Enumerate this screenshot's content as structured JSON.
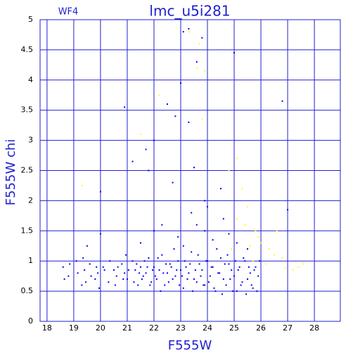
{
  "chart_data": {
    "type": "scatter",
    "title": "lmc_u5i281",
    "annotation": "WF4",
    "x_label": "F555W",
    "y_label": "F555W chi",
    "xlim": [
      17.74,
      28.97
    ],
    "ylim": [
      0,
      5
    ],
    "xticks": [
      18,
      19,
      20,
      21,
      22,
      23,
      24,
      25,
      26,
      27,
      28
    ],
    "yticks": [
      0,
      0.5,
      1,
      1.5,
      2,
      2.5,
      3,
      3.5,
      4,
      4.5,
      5
    ],
    "grid": true,
    "series": [
      {
        "color": "#0000ff",
        "x": [
          18.6,
          18.8,
          19.1,
          19.3,
          19.4,
          19.6,
          19.8,
          19.9,
          20.1,
          20.3,
          20.5,
          20.6,
          20.8,
          20.9,
          21.0,
          21.2,
          21.3,
          21.4,
          21.5,
          21.6,
          21.7,
          21.8,
          21.9,
          22.0,
          22.1,
          22.2,
          22.3,
          22.4,
          22.5,
          22.6,
          22.7,
          22.8,
          22.9,
          23.0,
          23.1,
          23.2,
          23.3,
          23.4,
          23.5,
          23.6,
          23.7,
          23.8,
          23.9,
          24.0,
          24.1,
          24.2,
          24.3,
          24.4,
          24.5,
          24.6,
          24.7,
          24.8,
          24.9,
          25.0,
          25.1,
          25.2,
          25.3,
          25.4,
          25.5,
          25.6,
          25.7,
          25.8,
          25.9,
          18.65,
          18.85,
          19.15,
          19.35,
          19.45,
          19.65,
          19.85,
          19.95,
          20.15,
          20.35,
          20.55,
          20.65,
          20.85,
          20.95,
          21.05,
          21.25,
          21.35,
          21.45,
          21.55,
          21.65,
          21.75,
          21.85,
          21.95,
          22.05,
          22.15,
          22.25,
          22.35,
          22.45,
          22.55,
          22.65,
          22.75,
          22.85,
          22.95,
          23.05,
          23.15,
          23.25,
          23.35,
          23.45,
          23.55,
          23.65,
          23.75,
          23.85,
          23.95,
          24.05,
          24.15,
          24.25,
          24.35,
          24.45,
          24.55,
          24.65,
          24.75,
          24.85,
          24.95,
          25.05,
          25.15,
          25.25,
          25.35,
          25.45,
          25.55,
          25.65,
          25.75,
          25.85,
          25.95,
          23.3,
          23.1,
          23.8,
          25.0,
          23.6,
          23.0,
          26.8,
          22.5,
          20.9,
          22.8,
          23.3,
          22.0,
          21.7,
          21.2,
          21.8,
          23.5,
          20.0,
          27.0,
          23.9,
          24.5,
          22.7,
          21.5,
          22.3,
          22.9,
          23.4,
          23.9,
          24.2,
          24.6,
          25.1,
          22.0,
          23.1,
          24.0,
          24.8,
          20.0,
          19.5,
          25.5,
          23.6
        ],
        "values": [
          0.9,
          0.75,
          1.0,
          0.6,
          0.85,
          0.95,
          0.7,
          0.8,
          0.9,
          0.65,
          0.85,
          0.75,
          0.95,
          0.8,
          0.7,
          1.0,
          0.85,
          0.6,
          0.9,
          0.75,
          0.8,
          1.05,
          0.65,
          0.9,
          0.7,
          0.85,
          1.1,
          0.6,
          0.8,
          0.95,
          0.7,
          0.75,
          1.0,
          0.85,
          0.55,
          0.9,
          0.8,
          1.15,
          0.7,
          0.65,
          0.95,
          0.85,
          0.6,
          1.0,
          0.75,
          0.9,
          0.5,
          0.8,
          1.05,
          0.7,
          0.6,
          0.95,
          0.85,
          0.75,
          0.5,
          0.9,
          0.65,
          1.0,
          0.7,
          0.8,
          0.55,
          0.9,
          0.75,
          0.7,
          0.95,
          0.8,
          1.05,
          0.65,
          0.75,
          0.9,
          0.55,
          0.85,
          1.0,
          0.6,
          0.9,
          0.7,
          1.1,
          0.85,
          0.65,
          0.95,
          0.8,
          0.7,
          1.0,
          0.9,
          0.6,
          0.85,
          0.75,
          1.05,
          0.5,
          0.8,
          0.95,
          0.65,
          0.9,
          1.2,
          0.85,
          0.6,
          0.75,
          1.0,
          0.7,
          0.95,
          0.5,
          0.85,
          1.1,
          0.75,
          0.6,
          1.0,
          0.65,
          0.9,
          0.55,
          1.2,
          0.8,
          0.45,
          0.95,
          1.1,
          0.7,
          0.5,
          1.0,
          0.85,
          0.6,
          1.05,
          0.45,
          0.9,
          0.6,
          0.85,
          0.5,
          1.0,
          4.85,
          4.8,
          4.7,
          4.45,
          4.3,
          3.95,
          3.65,
          3.6,
          3.55,
          3.4,
          3.3,
          3.0,
          2.85,
          2.65,
          2.5,
          2.55,
          2.15,
          1.85,
          2.0,
          2.2,
          2.3,
          1.3,
          1.6,
          1.4,
          1.8,
          1.5,
          1.35,
          1.7,
          1.3,
          1.5,
          1.25,
          1.9,
          1.45,
          1.45,
          1.25,
          1.2,
          1.6
        ]
      },
      {
        "color": "#ffff00",
        "x": [
          23.3,
          23.7,
          23.6,
          23.9,
          22.2,
          23.8,
          21.5,
          19.3,
          25.1,
          24.8,
          25.3,
          25.5,
          25.1,
          25.8,
          26.0,
          26.3,
          26.5,
          27.4,
          27.6,
          27.2,
          26.8,
          25.6,
          25.9,
          24.9,
          26.2,
          25.4,
          26.6,
          25.7,
          26.9
        ],
        "values": [
          4.8,
          4.6,
          4.2,
          4.15,
          3.75,
          3.35,
          3.1,
          2.25,
          2.7,
          2.5,
          2.2,
          1.9,
          1.7,
          1.5,
          1.3,
          1.2,
          1.1,
          0.9,
          0.95,
          0.85,
          1.05,
          1.25,
          1.4,
          1.2,
          0.95,
          1.6,
          1.5,
          1.0,
          0.88
        ]
      }
    ]
  }
}
